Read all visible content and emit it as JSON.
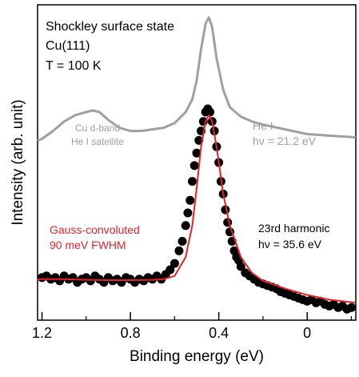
{
  "chart_data": {
    "type": "line",
    "xlabel": "Binding energy (eV)",
    "ylabel": "Intensity (arb. unit)",
    "xlim": [
      1.22,
      -0.22
    ],
    "ylim": [
      0,
      1
    ],
    "x_reversed": true,
    "yticks_labeled": false,
    "xticks": [
      1.2,
      0.8,
      0.4,
      0
    ],
    "xtick_labels": [
      "1.2",
      "0.8",
      "0.4",
      "0"
    ],
    "grid": false,
    "annotations": {
      "title_lines": [
        "Shockley surface state",
        "Cu(111)",
        "T = 100 K"
      ],
      "he_label": [
        "He I",
        "hν = 21.2 eV"
      ],
      "cu_label": [
        "Cu d-band",
        "He I satellite"
      ],
      "fit_label": [
        "Gauss-convoluted",
        "90 meV FWHM"
      ],
      "harm_label": [
        "23rd harmonic",
        "hν = 35.6 eV"
      ]
    },
    "colors": {
      "he_line": "#a0a0a0",
      "fit_line": "#e8202a",
      "points": "#000000",
      "fit_text": "#e8202a",
      "he_text": "#a0a0a0"
    },
    "series": [
      {
        "kind": "line",
        "x": [
          1.22,
          1.2,
          1.15,
          1.1,
          1.05,
          1.0,
          0.97,
          0.94,
          0.9,
          0.85,
          0.8,
          0.75,
          0.7,
          0.65,
          0.6,
          0.55,
          0.52,
          0.5,
          0.48,
          0.46,
          0.445,
          0.43,
          0.41,
          0.38,
          0.35,
          0.3,
          0.25,
          0.2,
          0.1,
          0.0,
          -0.1,
          -0.22
        ],
        "y": [
          0.57,
          0.575,
          0.6,
          0.63,
          0.65,
          0.66,
          0.665,
          0.66,
          0.635,
          0.61,
          0.6,
          0.6,
          0.605,
          0.61,
          0.625,
          0.66,
          0.7,
          0.76,
          0.86,
          0.94,
          0.96,
          0.93,
          0.83,
          0.73,
          0.675,
          0.645,
          0.63,
          0.62,
          0.605,
          0.59,
          0.585,
          0.58
        ]
      },
      {
        "kind": "line",
        "x": [
          1.22,
          1.1,
          1.0,
          0.9,
          0.8,
          0.7,
          0.65,
          0.6,
          0.55,
          0.52,
          0.5,
          0.48,
          0.46,
          0.445,
          0.43,
          0.41,
          0.38,
          0.35,
          0.3,
          0.25,
          0.2,
          0.1,
          0.0,
          -0.1,
          -0.22
        ],
        "y": [
          0.13,
          0.13,
          0.128,
          0.127,
          0.127,
          0.128,
          0.13,
          0.14,
          0.2,
          0.3,
          0.42,
          0.55,
          0.63,
          0.65,
          0.63,
          0.55,
          0.4,
          0.3,
          0.2,
          0.15,
          0.125,
          0.1,
          0.08,
          0.065,
          0.055
        ]
      },
      {
        "kind": "scatter",
        "x": [
          1.2,
          1.18,
          1.16,
          1.14,
          1.12,
          1.1,
          1.08,
          1.06,
          1.04,
          1.02,
          1.0,
          0.98,
          0.96,
          0.94,
          0.92,
          0.9,
          0.88,
          0.86,
          0.84,
          0.82,
          0.8,
          0.78,
          0.76,
          0.74,
          0.72,
          0.7,
          0.68,
          0.66,
          0.64,
          0.62,
          0.6,
          0.58,
          0.565,
          0.55,
          0.54,
          0.53,
          0.52,
          0.51,
          0.5,
          0.49,
          0.48,
          0.47,
          0.46,
          0.45,
          0.44,
          0.43,
          0.42,
          0.41,
          0.4,
          0.39,
          0.38,
          0.37,
          0.36,
          0.35,
          0.34,
          0.33,
          0.32,
          0.31,
          0.3,
          0.28,
          0.26,
          0.24,
          0.22,
          0.2,
          0.18,
          0.16,
          0.14,
          0.12,
          0.1,
          0.08,
          0.06,
          0.04,
          0.02,
          0.0,
          -0.02,
          -0.04,
          -0.06,
          -0.08,
          -0.1,
          -0.12,
          -0.14,
          -0.16,
          -0.18,
          -0.2
        ],
        "y": [
          0.135,
          0.14,
          0.13,
          0.135,
          0.125,
          0.14,
          0.13,
          0.135,
          0.12,
          0.13,
          0.135,
          0.125,
          0.14,
          0.13,
          0.12,
          0.135,
          0.125,
          0.13,
          0.12,
          0.135,
          0.13,
          0.12,
          0.13,
          0.125,
          0.135,
          0.13,
          0.14,
          0.13,
          0.145,
          0.16,
          0.18,
          0.22,
          0.25,
          0.3,
          0.34,
          0.38,
          0.44,
          0.49,
          0.53,
          0.57,
          0.6,
          0.63,
          0.66,
          0.67,
          0.66,
          0.63,
          0.6,
          0.55,
          0.5,
          0.44,
          0.4,
          0.35,
          0.31,
          0.28,
          0.25,
          0.22,
          0.2,
          0.19,
          0.17,
          0.15,
          0.14,
          0.13,
          0.12,
          0.115,
          0.11,
          0.105,
          0.1,
          0.09,
          0.085,
          0.08,
          0.075,
          0.07,
          0.065,
          0.06,
          0.065,
          0.055,
          0.06,
          0.05,
          0.045,
          0.05,
          0.04,
          0.045,
          0.035,
          0.04
        ]
      }
    ]
  }
}
